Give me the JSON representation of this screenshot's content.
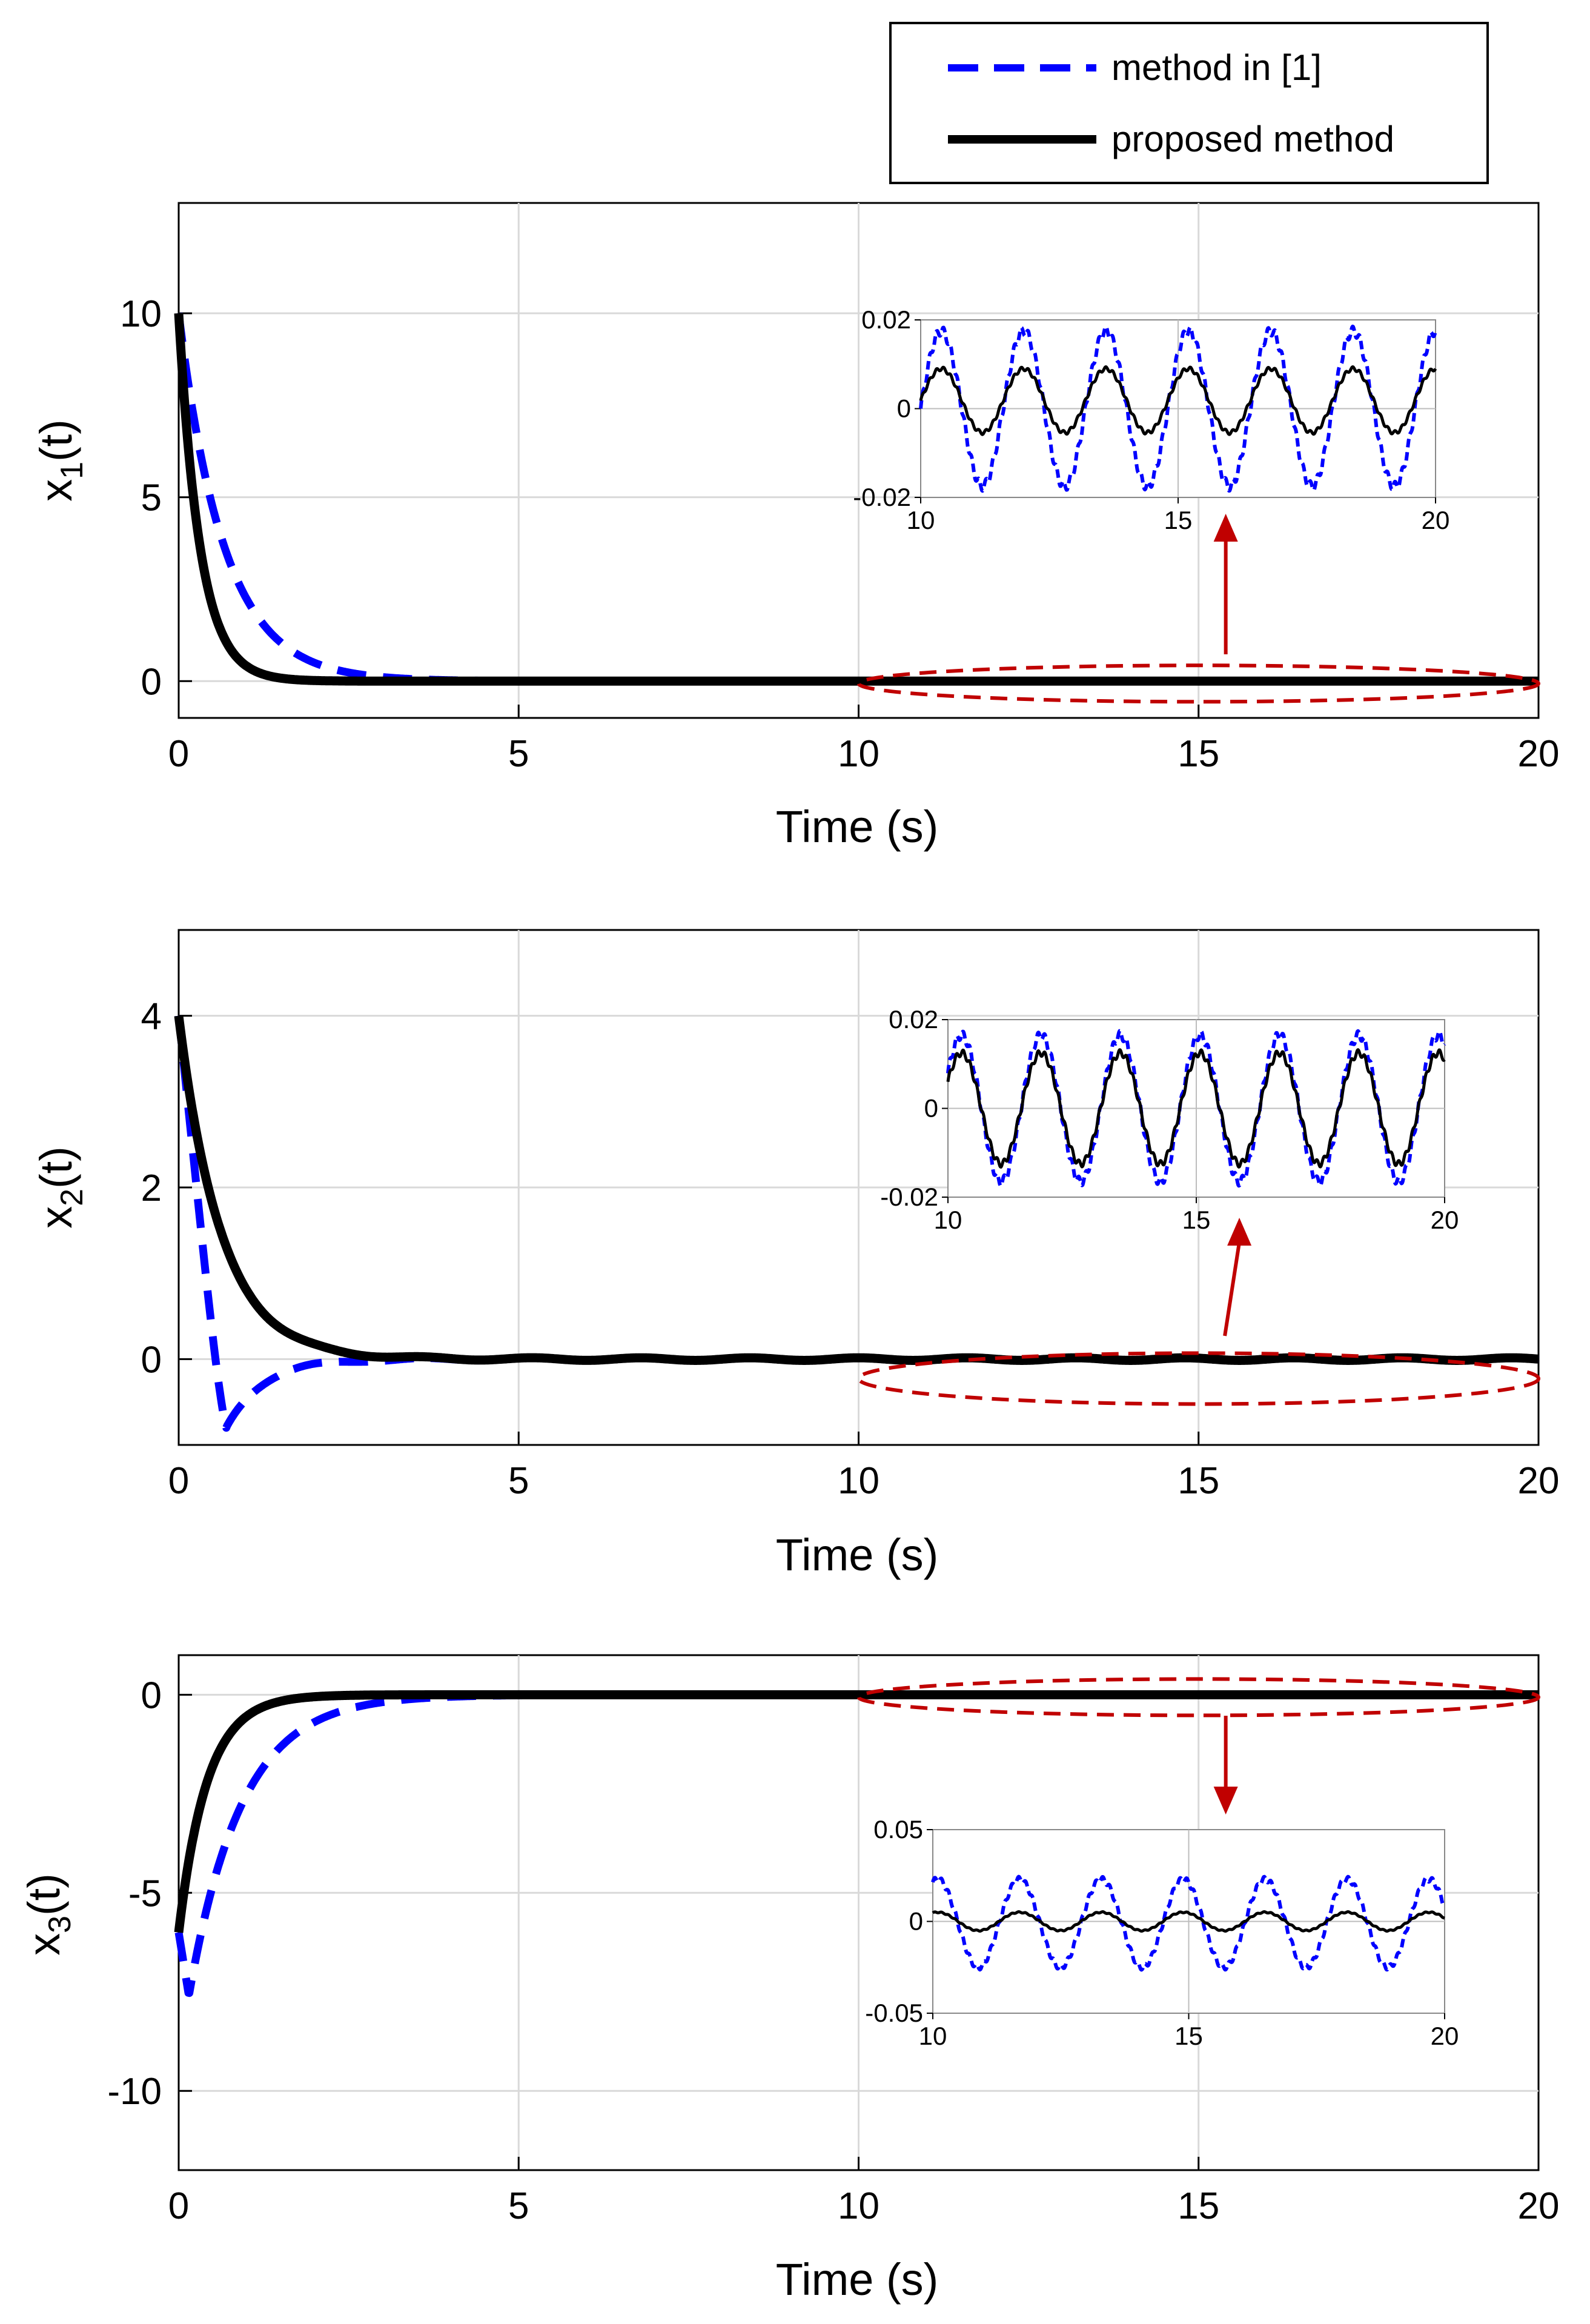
{
  "legend": {
    "entries": [
      {
        "label": "method in [1]",
        "style": "dashed",
        "color": "#0000ff"
      },
      {
        "label": "proposed method",
        "style": "solid",
        "color": "#000000"
      }
    ]
  },
  "chart_data": [
    {
      "type": "line",
      "id": "x1",
      "ylabel_base": "x",
      "ylabel_sub": "1",
      "ylabel_suffix": "(t)",
      "xlabel": "Time (s)",
      "xlim": [
        0,
        20
      ],
      "ylim": [
        -1,
        13
      ],
      "xticks": [
        0,
        5,
        10,
        15,
        20
      ],
      "yticks": [
        0,
        5,
        10
      ],
      "grid": true,
      "series": [
        {
          "name": "method in [1]",
          "model": {
            "x0": 10,
            "k": 1.5,
            "osc_amp": 0.0,
            "osc_period": 1.6
          }
        },
        {
          "name": "proposed method",
          "model": {
            "x0": 10,
            "k": 3.2,
            "osc_amp": 0.0,
            "osc_period": 1.6
          }
        }
      ],
      "annotations": [
        {
          "type": "ellipse",
          "x_range": [
            10,
            20
          ],
          "y_center": 0,
          "color": "#c00000"
        },
        {
          "type": "arrow",
          "x": 15.4,
          "direction": "up",
          "color": "#c00000"
        }
      ],
      "inset": {
        "xlim": [
          10,
          20
        ],
        "ylim": [
          -0.02,
          0.02
        ],
        "xticks": [
          10,
          15,
          20
        ],
        "yticks": [
          -0.02,
          0,
          0.02
        ],
        "ytick_labels": [
          "-0.02",
          "0",
          "0.02"
        ],
        "series": [
          {
            "name": "method in [1]",
            "model": {
              "amp": 0.0175,
              "period": 1.6,
              "phase": 0.0,
              "offset": 0.0,
              "clip_top": 0.02
            }
          },
          {
            "name": "proposed method",
            "model": {
              "amp": 0.0072,
              "period": 1.6,
              "phase": 0.0,
              "offset": 0.0018
            }
          }
        ]
      }
    },
    {
      "type": "line",
      "id": "x2",
      "ylabel_base": "x",
      "ylabel_sub": "2",
      "ylabel_suffix": "(t)",
      "xlabel": "Time (s)",
      "xlim": [
        0,
        20
      ],
      "ylim": [
        -1,
        5
      ],
      "xticks": [
        0,
        5,
        10,
        15,
        20
      ],
      "yticks": [
        0,
        2,
        4
      ],
      "grid": true,
      "series": [
        {
          "name": "method in [1]",
          "model": {
            "x0": 4,
            "undershoot": -0.8,
            "t_min": 0.7,
            "settle": 2.8
          }
        },
        {
          "name": "proposed method",
          "model": {
            "x0": 4,
            "k": 1.6
          }
        }
      ],
      "annotations": [
        {
          "type": "ellipse",
          "x_range": [
            10,
            20
          ],
          "y_center": -0.1,
          "color": "#c00000"
        },
        {
          "type": "arrow",
          "x": 15.6,
          "direction": "up",
          "color": "#c00000"
        }
      ],
      "inset": {
        "xlim": [
          10,
          20
        ],
        "ylim": [
          -0.02,
          0.02
        ],
        "xticks": [
          10,
          15,
          20
        ],
        "yticks": [
          -0.02,
          0,
          0.02
        ],
        "ytick_labels": [
          "-0.02",
          "0",
          "0.02"
        ],
        "series": [
          {
            "name": "method in [1]",
            "model": {
              "amp": 0.0165,
              "period": 1.6,
              "phase": 0.5,
              "offset": 0.0
            }
          },
          {
            "name": "proposed method",
            "model": {
              "amp": 0.0125,
              "period": 1.6,
              "phase": 0.5,
              "offset": 0.0
            }
          }
        ]
      }
    },
    {
      "type": "line",
      "id": "x3",
      "ylabel_base": "x",
      "ylabel_sub": "3",
      "ylabel_suffix": "(t)",
      "xlabel": "Time (s)",
      "xlim": [
        0,
        20
      ],
      "ylim": [
        -12,
        1
      ],
      "xticks": [
        0,
        5,
        10,
        15,
        20
      ],
      "yticks": [
        -10,
        -5,
        0
      ],
      "grid": true,
      "series": [
        {
          "name": "method in [1]",
          "model": {
            "x0": -6,
            "dip": -7.6,
            "k": 1.3
          }
        },
        {
          "name": "proposed method",
          "model": {
            "x0": -6,
            "k": 2.4
          }
        }
      ],
      "annotations": [
        {
          "type": "ellipse",
          "x_range": [
            10,
            20
          ],
          "y_center": 0,
          "color": "#c00000"
        },
        {
          "type": "arrow",
          "x": 15.4,
          "direction": "down",
          "color": "#c00000"
        }
      ],
      "inset": {
        "xlim": [
          10,
          20
        ],
        "ylim": [
          -0.05,
          0.05
        ],
        "xticks": [
          10,
          15,
          20
        ],
        "yticks": [
          -0.05,
          0,
          0.05
        ],
        "ytick_labels": [
          "-0.05",
          "0",
          "0.05"
        ],
        "series": [
          {
            "name": "method in [1]",
            "model": {
              "amp": 0.024,
              "period": 1.6,
              "phase": 1.2,
              "offset": -0.001
            }
          },
          {
            "name": "proposed method",
            "model": {
              "amp": 0.005,
              "period": 1.6,
              "phase": 1.2,
              "offset": 0.0
            }
          }
        ]
      }
    }
  ]
}
